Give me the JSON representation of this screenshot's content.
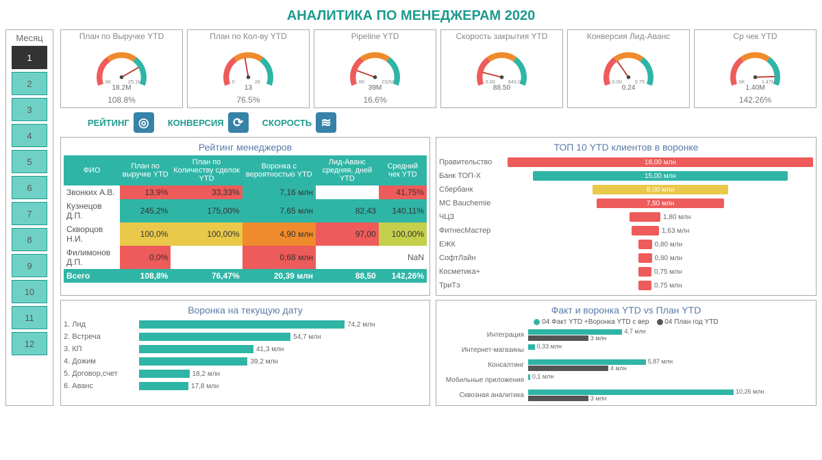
{
  "title": "АНАЛИТИКА ПО МЕНЕДЖЕРАМ 2020",
  "months": {
    "header": "Месяц",
    "items": [
      "1",
      "2",
      "3",
      "4",
      "5",
      "6",
      "7",
      "8",
      "9",
      "10",
      "11",
      "12"
    ],
    "active": 0
  },
  "colors": {
    "teal": "#2fb5a6",
    "teal_light": "#6fd1c6",
    "orange": "#ef8b2c",
    "red": "#ed5b5a",
    "yellow": "#e9c84a",
    "yellowgreen": "#c4cf4b",
    "dark": "#555555",
    "tab_icon_bg": "#3782a7"
  },
  "gauges": [
    {
      "label": "План по Выручке YTD",
      "min": "0K",
      "max": "25.1M",
      "value": "18.2M",
      "pct": "108.8%",
      "needle_angle": 60
    },
    {
      "label": "План по Кол-ву YTD",
      "min": "0",
      "max": "26",
      "value": "13",
      "pct": "76.5%",
      "needle_angle": -10
    },
    {
      "label": "Pipeline YTD",
      "min": "0K",
      "max": "232M",
      "value": "39M",
      "pct": "16.6%",
      "needle_angle": -70
    },
    {
      "label": "Скорость закрытия YTD",
      "min": "0.00",
      "max": "843.0",
      "value": "88.50",
      "pct": "",
      "needle_angle": -76
    },
    {
      "label": "Конверсия Лид-Аванс",
      "min": "0.00",
      "max": "0.75",
      "value": "0.24",
      "pct": "",
      "needle_angle": -35
    },
    {
      "label": "Ср чек YTD",
      "min": "0K",
      "max": "1.47M",
      "value": "1.40M",
      "pct": "142.26%",
      "needle_angle": 88
    }
  ],
  "tabs": [
    {
      "label": "РЕЙТИНГ",
      "icon": "◎"
    },
    {
      "label": "КОНВЕРСИЯ",
      "icon": "⟳"
    },
    {
      "label": "СКОРОСТЬ",
      "icon": "≋"
    }
  ],
  "rating": {
    "title": "Рейтинг менеджеров",
    "headers": [
      "ФИО",
      "План по выручке YTD",
      "План по Количеству сделок YTD",
      "Воронка с вероятностью YTD",
      "Лид-Аванс средняя, дней YTD",
      "Средний чек YTD"
    ],
    "rows": [
      {
        "name": "Звонких А.В.",
        "cells": [
          {
            "v": "13,9%",
            "bg": "#ed5b5a"
          },
          {
            "v": "33,33%",
            "bg": "#ed5b5a"
          },
          {
            "v": "7,16 млн",
            "bg": "#2fb5a6"
          },
          {
            "v": "",
            "bg": "#ffffff"
          },
          {
            "v": "41,75%",
            "bg": "#ed5b5a"
          }
        ]
      },
      {
        "name": "Кузнецов Д.П.",
        "cells": [
          {
            "v": "245,2%",
            "bg": "#2fb5a6"
          },
          {
            "v": "175,00%",
            "bg": "#2fb5a6"
          },
          {
            "v": "7,65 млн",
            "bg": "#2fb5a6"
          },
          {
            "v": "82,43",
            "bg": "#2fb5a6"
          },
          {
            "v": "140,11%",
            "bg": "#2fb5a6"
          }
        ]
      },
      {
        "name": "Скворцов Н.И.",
        "cells": [
          {
            "v": "100,0%",
            "bg": "#e9c84a"
          },
          {
            "v": "100,00%",
            "bg": "#e9c84a"
          },
          {
            "v": "4,90 млн",
            "bg": "#ef8b2c"
          },
          {
            "v": "97,00",
            "bg": "#ed5b5a"
          },
          {
            "v": "100,00%",
            "bg": "#c4cf4b"
          }
        ]
      },
      {
        "name": "Филимонов Д.П.",
        "cells": [
          {
            "v": "0,0%",
            "bg": "#ed5b5a"
          },
          {
            "v": "",
            "bg": "#ffffff"
          },
          {
            "v": "0,68 млн",
            "bg": "#ed5b5a"
          },
          {
            "v": "",
            "bg": "#ffffff"
          },
          {
            "v": "NaN",
            "bg": "#ffffff"
          }
        ]
      }
    ],
    "total": {
      "label": "Всего",
      "cells": [
        "108,8%",
        "76,47%",
        "20,39 млн",
        "88,50",
        "142,26%"
      ]
    }
  },
  "top10": {
    "title": "ТОП 10 YTD клиентов в воронке",
    "max": 18.0,
    "items": [
      {
        "label": "Правительство",
        "value": 18.0,
        "text": "18,00 млн",
        "color": "#ed5b5a",
        "inside": true
      },
      {
        "label": "Банк ТОП-Х",
        "value": 15.0,
        "text": "15,00 млн",
        "color": "#2fb5a6",
        "inside": true
      },
      {
        "label": "Сбербанк",
        "value": 8.0,
        "text": "8,00 млн",
        "color": "#e9c84a",
        "inside": true
      },
      {
        "label": "МС Bauchemie",
        "value": 7.5,
        "text": "7,50 млн",
        "color": "#ed5b5a",
        "inside": true
      },
      {
        "label": "ЧЦЗ",
        "value": 1.8,
        "text": "1,80 млн",
        "color": "#ed5b5a",
        "inside": false
      },
      {
        "label": "ФитнесМастер",
        "value": 1.63,
        "text": "1,63 млн",
        "color": "#ed5b5a",
        "inside": false
      },
      {
        "label": "ЕЖК",
        "value": 0.8,
        "text": "0,80 млн",
        "color": "#ed5b5a",
        "inside": false
      },
      {
        "label": "СофтЛайн",
        "value": 0.8,
        "text": "0,80 млн",
        "color": "#ed5b5a",
        "inside": false
      },
      {
        "label": "Косметика+",
        "value": 0.75,
        "text": "0,75 млн",
        "color": "#ed5b5a",
        "inside": false
      },
      {
        "label": "ТриТэ",
        "value": 0.75,
        "text": "0,75 млн",
        "color": "#ed5b5a",
        "inside": false
      }
    ]
  },
  "funnel": {
    "title": "Воронка на текущую дату",
    "max": 74.2,
    "items": [
      {
        "label": "1. Лид",
        "value": 74.2,
        "text": "74,2 млн"
      },
      {
        "label": "2. Встреча",
        "value": 54.7,
        "text": "54,7 млн"
      },
      {
        "label": "3. КП",
        "value": 41.3,
        "text": "41,3 млн"
      },
      {
        "label": "4. Дожим",
        "value": 39.2,
        "text": "39,2 млн"
      },
      {
        "label": "5. Договор,счет",
        "value": 18.2,
        "text": "18,2 млн"
      },
      {
        "label": "6. Аванс",
        "value": 17.8,
        "text": "17,8 млн"
      }
    ]
  },
  "fact": {
    "title": "Факт и воронка YTD vs План YTD",
    "legend": [
      "04 Факт YTD +Воронка YTD с вер",
      "04 План год YTD"
    ],
    "max": 10.26,
    "items": [
      {
        "label": "Интеграция",
        "v1": 4.7,
        "t1": "4,7 млн",
        "v2": 3.0,
        "t2": "3 млн"
      },
      {
        "label": "Интернет-магазины",
        "v1": 0.33,
        "t1": "0,33 млн",
        "v2": 0,
        "t2": ""
      },
      {
        "label": "Консалтинг",
        "v1": 5.87,
        "t1": "5,87 млн",
        "v2": 4.0,
        "t2": "4 млн"
      },
      {
        "label": "Мобильные приложения",
        "v1": 0.1,
        "t1": "0,1 млн",
        "v2": 0,
        "t2": ""
      },
      {
        "label": "Сквозная аналитика",
        "v1": 10.26,
        "t1": "10,26 млн",
        "v2": 3.0,
        "t2": "3 млн"
      }
    ]
  }
}
